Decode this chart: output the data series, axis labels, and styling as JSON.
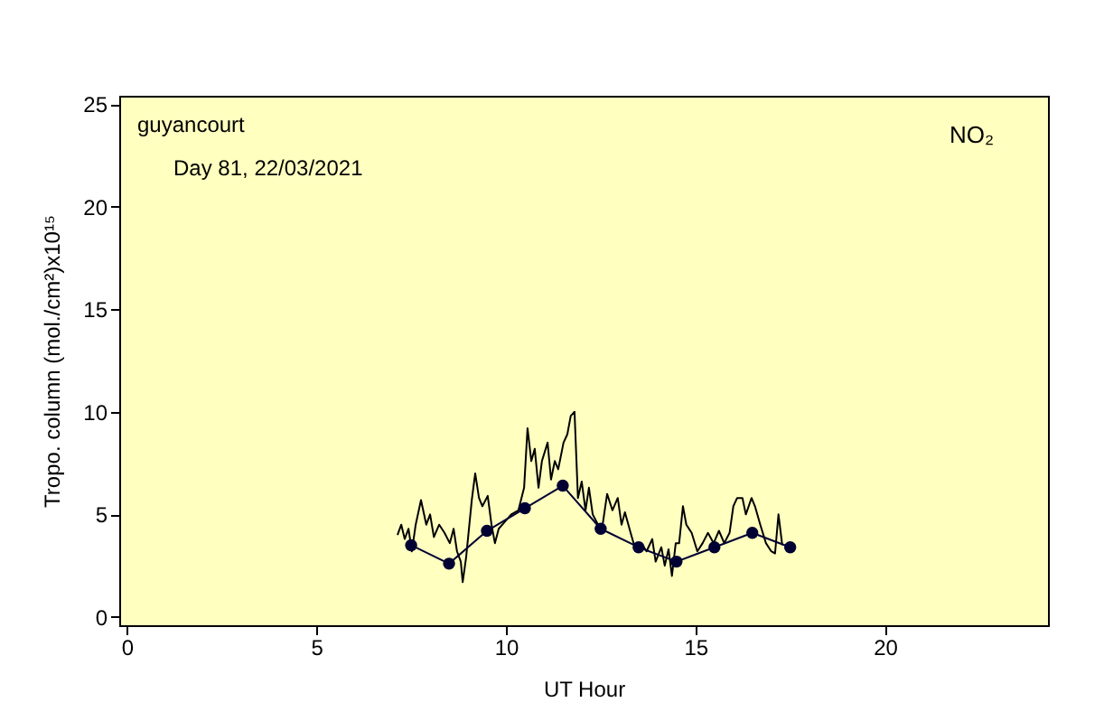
{
  "chart_data": {
    "type": "line",
    "xlabel": "UT Hour",
    "ylabel": "Tropo. column (mol./cm²)x10¹⁵",
    "annotations": [
      "guyancourt",
      "Day 81, 22/03/2021",
      "NO₂"
    ],
    "xlim": [
      -0.2,
      24.3
    ],
    "xticks": [
      0,
      5,
      10,
      15,
      20
    ],
    "ylim": [
      -0.4,
      25.4
    ],
    "yticks": [
      0,
      5,
      10,
      15,
      20,
      25
    ],
    "grid": false,
    "line_style": "solid",
    "series": [
      {
        "color": "#000000",
        "marker": "none",
        "x": [
          7.14,
          7.24,
          7.33,
          7.43,
          7.52,
          7.62,
          7.76,
          7.9,
          8.0,
          8.1,
          8.24,
          8.38,
          8.52,
          8.62,
          8.71,
          8.81,
          8.86,
          8.95,
          9.1,
          9.19,
          9.29,
          9.38,
          9.52,
          9.62,
          9.71,
          9.81,
          10.0,
          10.14,
          10.33,
          10.48,
          10.57,
          10.67,
          10.76,
          10.86,
          10.95,
          11.1,
          11.19,
          11.29,
          11.38,
          11.52,
          11.62,
          11.71,
          11.81,
          11.9,
          12.0,
          12.1,
          12.19,
          12.29,
          12.43,
          12.52,
          12.67,
          12.81,
          12.95,
          13.05,
          13.14,
          13.29,
          13.43,
          13.57,
          13.71,
          13.86,
          13.95,
          14.1,
          14.19,
          14.29,
          14.38,
          14.48,
          14.57,
          14.67,
          14.76,
          14.9,
          15.05,
          15.19,
          15.33,
          15.48,
          15.62,
          15.76,
          15.9,
          16.0,
          16.1,
          16.24,
          16.33,
          16.48,
          16.57,
          16.71,
          16.86,
          17.0,
          17.1,
          17.19,
          17.29
        ],
        "values": [
          4.0,
          4.5,
          3.8,
          4.3,
          3.2,
          4.5,
          5.7,
          4.5,
          5.0,
          3.9,
          4.5,
          4.1,
          3.6,
          4.3,
          3.2,
          2.7,
          1.7,
          2.9,
          5.7,
          7.0,
          5.8,
          5.4,
          5.9,
          4.5,
          3.6,
          4.3,
          4.7,
          5.0,
          5.2,
          6.3,
          9.2,
          7.6,
          8.2,
          6.3,
          7.6,
          8.5,
          6.7,
          7.6,
          7.2,
          8.5,
          8.9,
          9.8,
          10.0,
          5.8,
          6.6,
          5.2,
          6.3,
          5.0,
          4.5,
          4.1,
          6.0,
          5.2,
          5.8,
          4.5,
          5.1,
          4.1,
          3.2,
          3.6,
          3.2,
          3.8,
          2.7,
          3.4,
          2.5,
          3.3,
          2.0,
          3.6,
          3.6,
          5.4,
          4.5,
          4.1,
          3.2,
          3.6,
          4.1,
          3.6,
          4.2,
          3.6,
          4.1,
          5.4,
          5.8,
          5.8,
          5.0,
          5.8,
          5.4,
          4.5,
          3.6,
          3.2,
          3.1,
          5.0,
          3.5
        ]
      },
      {
        "color": "#000033",
        "marker": "circle",
        "x": [
          7.5,
          8.5,
          9.5,
          10.5,
          11.5,
          12.5,
          13.5,
          14.5,
          15.5,
          16.5,
          17.5
        ],
        "values": [
          3.5,
          2.6,
          4.2,
          5.3,
          6.4,
          4.3,
          3.4,
          2.7,
          3.4,
          4.1,
          3.4
        ]
      }
    ]
  }
}
